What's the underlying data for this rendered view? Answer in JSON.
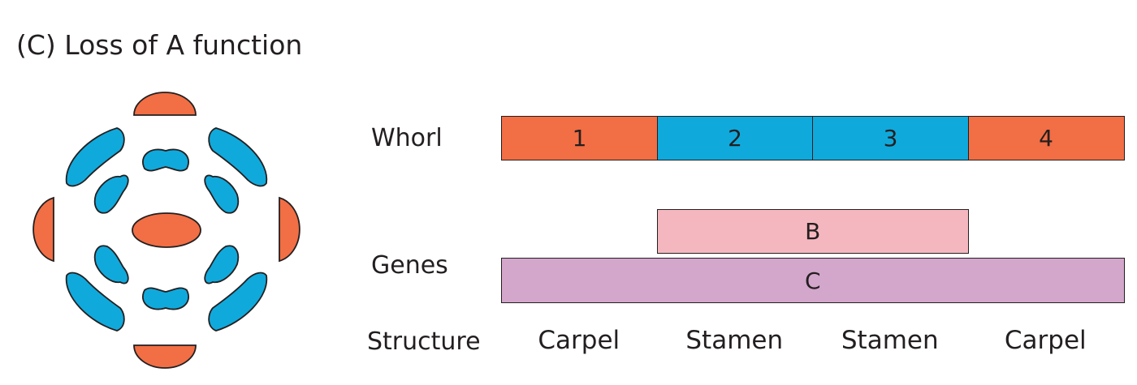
{
  "title": "(C)  Loss of A function",
  "labels": {
    "whorl": "Whorl",
    "genes": "Genes",
    "structure": "Structure"
  },
  "whorls": [
    {
      "label": "1",
      "color": "#f26e44"
    },
    {
      "label": "2",
      "color": "#10a9dc"
    },
    {
      "label": "3",
      "color": "#10a9dc"
    },
    {
      "label": "4",
      "color": "#f26e44"
    }
  ],
  "genes": [
    {
      "label": "B",
      "color": "#f5b7bf",
      "whorls": [
        2,
        3
      ]
    },
    {
      "label": "C",
      "color": "#d3a6cb",
      "whorls": [
        1,
        2,
        3,
        4
      ]
    }
  ],
  "structures": [
    "Carpel",
    "Stamen",
    "Stamen",
    "Carpel"
  ],
  "flower_colors": {
    "carpel": "#f26e44",
    "stamen": "#10a9dc"
  }
}
